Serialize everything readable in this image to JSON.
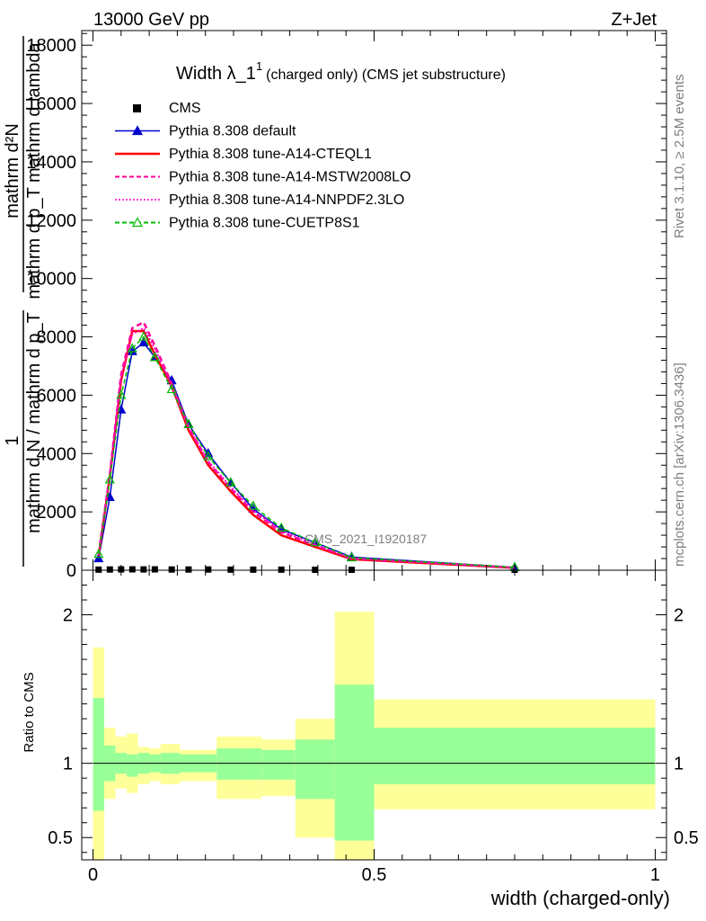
{
  "header": {
    "energy_label": "13000 GeV pp",
    "process_label": "Z+Jet"
  },
  "side_labels": {
    "rivet": "Rivet 3.1.10, ≥ 2.5M events",
    "mcplots": "mcplots.cern.ch [arXiv:1306.3436]"
  },
  "chart_data": [
    {
      "type": "line",
      "title": "Width λ_1",
      "title_superscript": "1",
      "subtitle": "(charged only) (CMS jet substructure)",
      "ylabel": {
        "numerator": "mathrm d²N",
        "denominator": "mathrm d p_T mathrm d lambda",
        "prefactor_num": "1",
        "prefactor_den": "mathrm d N / mathrm d p_T"
      },
      "xlim": [
        -0.02,
        1.02
      ],
      "ylim": [
        0,
        18500
      ],
      "yticks": [
        0,
        2000,
        4000,
        6000,
        8000,
        10000,
        12000,
        14000,
        16000,
        18000
      ],
      "yticklabels": [
        "0",
        "2000",
        "4000",
        "6000",
        "8000",
        "10000",
        "12000",
        "14000",
        "16000",
        "18000"
      ],
      "watermark": "CMS_2021_I1920187",
      "grid": false,
      "legend_position": "top-left",
      "legend": [
        {
          "label": "CMS",
          "color": "#000000",
          "style": "marker"
        },
        {
          "label": "Pythia 8.308 default",
          "color": "#0000cc",
          "style": "solid-triangle"
        },
        {
          "label": "Pythia 8.308 tune-A14-CTEQL1",
          "color": "#ff0000",
          "style": "solid"
        },
        {
          "label": "Pythia 8.308 tune-A14-MSTW2008LO",
          "color": "#ff0099",
          "style": "dashed"
        },
        {
          "label": "Pythia 8.308 tune-A14-NNPDF2.3LO",
          "color": "#ff00cc",
          "style": "dotted"
        },
        {
          "label": "Pythia 8.308 tune-CUETP8S1",
          "color": "#00bb00",
          "style": "dashed-open-triangle"
        }
      ],
      "x": [
        0.01,
        0.03,
        0.05,
        0.07,
        0.09,
        0.11,
        0.14,
        0.17,
        0.205,
        0.245,
        0.285,
        0.335,
        0.395,
        0.46,
        0.75
      ],
      "series": [
        {
          "name": "CMS",
          "values": [
            20,
            25,
            30,
            30,
            28,
            30,
            25,
            25,
            25,
            20,
            20,
            20,
            15,
            15,
            15
          ]
        },
        {
          "name": "Pythia 8.308 default",
          "values": [
            400,
            2500,
            5500,
            7500,
            7800,
            7300,
            6500,
            5000,
            4000,
            3000,
            2100,
            1400,
            950,
            450,
            100
          ]
        },
        {
          "name": "Pythia 8.308 tune-A14-CTEQL1",
          "values": [
            500,
            3200,
            6500,
            8200,
            8200,
            7400,
            6300,
            4800,
            3600,
            2700,
            1900,
            1200,
            800,
            380,
            80
          ]
        },
        {
          "name": "Pythia 8.308 tune-A14-MSTW2008LO",
          "values": [
            550,
            3300,
            6700,
            8300,
            8500,
            7700,
            6400,
            4900,
            3700,
            2800,
            2000,
            1300,
            850,
            400,
            90
          ]
        },
        {
          "name": "Pythia 8.308 tune-A14-NNPDF2.3LO",
          "values": [
            520,
            3250,
            6600,
            8100,
            8300,
            7600,
            6300,
            4900,
            3750,
            2850,
            2050,
            1350,
            880,
            410,
            90
          ]
        },
        {
          "name": "Pythia 8.308 tune-CUETP8S1",
          "values": [
            550,
            3100,
            6000,
            7600,
            8000,
            7300,
            6200,
            5000,
            3900,
            3000,
            2200,
            1450,
            950,
            430,
            100
          ]
        }
      ]
    },
    {
      "type": "area",
      "ylabel": "Ratio to CMS",
      "xlabel": "width (charged-only)",
      "xlim": [
        -0.02,
        1.02
      ],
      "ylim": [
        0.35,
        2.3
      ],
      "xticks": [
        0,
        0.5,
        1
      ],
      "xticklabels": [
        "0",
        "0.5",
        "1"
      ],
      "yticks": [
        0.5,
        1,
        2
      ],
      "yticklabels": [
        "0.5",
        "1",
        "2"
      ],
      "band_colors": {
        "inner": "#99ff99",
        "outer": "#ffff99"
      },
      "bins": [
        {
          "lo": 0.0,
          "hi": 0.02,
          "inner": [
            0.68,
            1.44
          ],
          "outer": [
            0.35,
            1.78
          ]
        },
        {
          "lo": 0.02,
          "hi": 0.04,
          "inner": [
            0.88,
            1.12
          ],
          "outer": [
            0.76,
            1.24
          ]
        },
        {
          "lo": 0.04,
          "hi": 0.06,
          "inner": [
            0.93,
            1.07
          ],
          "outer": [
            0.83,
            1.18
          ]
        },
        {
          "lo": 0.06,
          "hi": 0.08,
          "inner": [
            0.91,
            1.06
          ],
          "outer": [
            0.8,
            1.2
          ]
        },
        {
          "lo": 0.08,
          "hi": 0.1,
          "inner": [
            0.93,
            1.07
          ],
          "outer": [
            0.86,
            1.11
          ]
        },
        {
          "lo": 0.1,
          "hi": 0.12,
          "inner": [
            0.94,
            1.06
          ],
          "outer": [
            0.88,
            1.1
          ]
        },
        {
          "lo": 0.12,
          "hi": 0.155,
          "inner": [
            0.93,
            1.07
          ],
          "outer": [
            0.86,
            1.13
          ]
        },
        {
          "lo": 0.155,
          "hi": 0.19,
          "inner": [
            0.94,
            1.06
          ],
          "outer": [
            0.88,
            1.09
          ]
        },
        {
          "lo": 0.19,
          "hi": 0.22,
          "inner": [
            0.94,
            1.06
          ],
          "outer": [
            0.88,
            1.09
          ]
        },
        {
          "lo": 0.22,
          "hi": 0.27,
          "inner": [
            0.89,
            1.1
          ],
          "outer": [
            0.76,
            1.18
          ]
        },
        {
          "lo": 0.27,
          "hi": 0.3,
          "inner": [
            0.89,
            1.1
          ],
          "outer": [
            0.76,
            1.18
          ]
        },
        {
          "lo": 0.3,
          "hi": 0.36,
          "inner": [
            0.89,
            1.09
          ],
          "outer": [
            0.78,
            1.16
          ]
        },
        {
          "lo": 0.36,
          "hi": 0.43,
          "inner": [
            0.76,
            1.16
          ],
          "outer": [
            0.5,
            1.3
          ]
        },
        {
          "lo": 0.43,
          "hi": 0.5,
          "inner": [
            0.48,
            1.53
          ],
          "outer": [
            0.35,
            2.02
          ]
        },
        {
          "lo": 0.5,
          "hi": 1.0,
          "inner": [
            0.86,
            1.24
          ],
          "outer": [
            0.69,
            1.43
          ]
        }
      ],
      "reference_line": 1
    }
  ]
}
